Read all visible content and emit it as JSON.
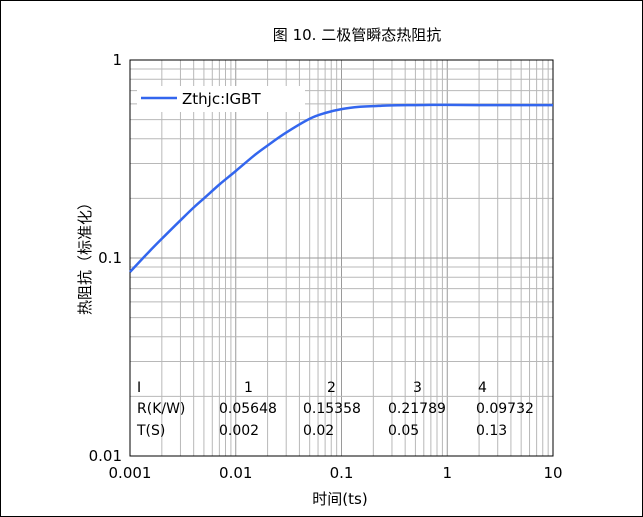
{
  "chart_data": {
    "type": "line",
    "title": "图 10. 二极管瞬态热阻抗",
    "xlabel": "时间(ts)",
    "ylabel": "热阻抗（标准化）",
    "xscale": "log",
    "yscale": "log",
    "xlim": [
      0.001,
      10
    ],
    "ylim": [
      0.01,
      1
    ],
    "xticks": [
      {
        "value": 0.001,
        "label": "0.001"
      },
      {
        "value": 0.01,
        "label": "0.01"
      },
      {
        "value": 0.1,
        "label": "0.1"
      },
      {
        "value": 1,
        "label": "1"
      },
      {
        "value": 10,
        "label": "10"
      }
    ],
    "yticks": [
      {
        "value": 0.01,
        "label": "0.01"
      },
      {
        "value": 0.1,
        "label": "0.1"
      },
      {
        "value": 1,
        "label": "1"
      }
    ],
    "grid": true,
    "legend_position": "top-left",
    "series": [
      {
        "name": "Zthjc:IGBT",
        "color": "#3366ee",
        "x": [
          0.001,
          0.0015,
          0.002,
          0.003,
          0.004,
          0.005,
          0.007,
          0.01,
          0.015,
          0.02,
          0.03,
          0.05,
          0.07,
          0.1,
          0.15,
          0.2,
          0.3,
          0.5,
          0.7,
          1,
          2,
          3,
          5,
          10
        ],
        "y": [
          0.085,
          0.107,
          0.125,
          0.155,
          0.18,
          0.2,
          0.235,
          0.275,
          0.33,
          0.37,
          0.43,
          0.505,
          0.54,
          0.565,
          0.58,
          0.585,
          0.59,
          0.592,
          0.593,
          0.593,
          0.592,
          0.592,
          0.592,
          0.592
        ]
      }
    ],
    "table": {
      "headers": [
        "I",
        "1",
        "2",
        "3",
        "4"
      ],
      "rows": [
        {
          "label": "R(K/W)",
          "values": [
            "0.05648",
            "0.15358",
            "0.21789",
            "0.09732"
          ]
        },
        {
          "label": "T(S)",
          "values": [
            "0.002",
            "0.02",
            "0.05",
            "0.13"
          ]
        }
      ]
    }
  }
}
